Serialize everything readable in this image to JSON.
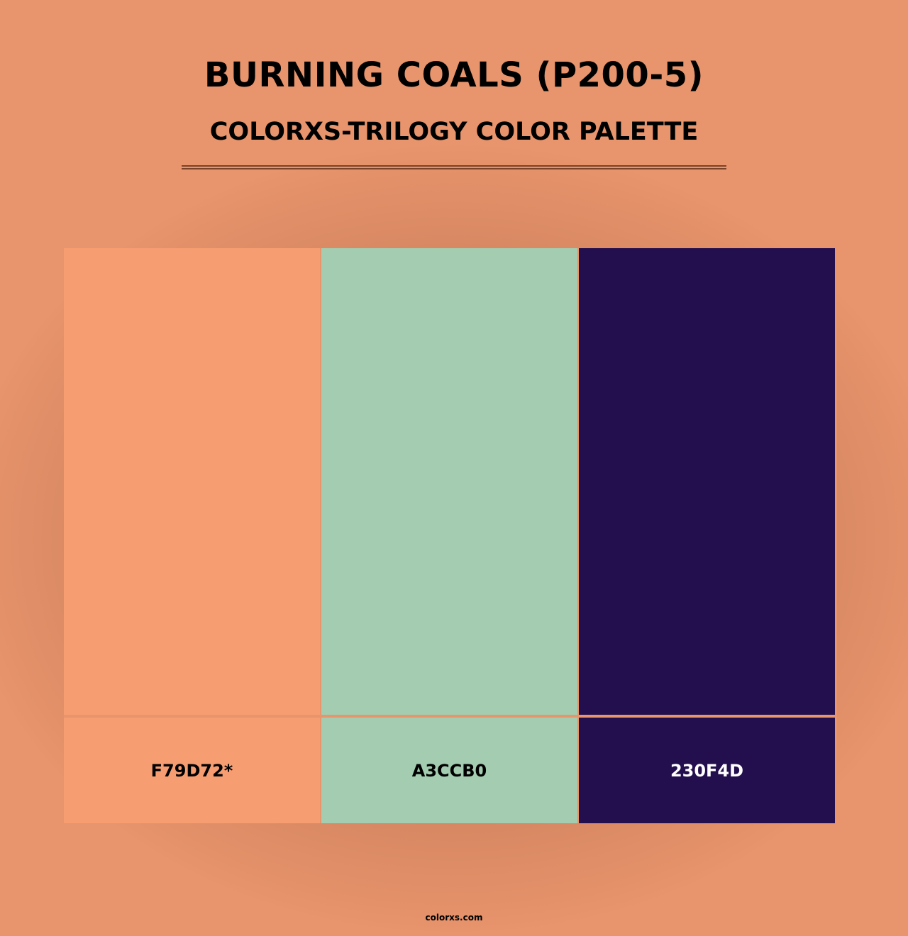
{
  "title": "BURNING COALS (P200-5)",
  "subtitle": "COLORXS-TRILOGY COLOR PALETTE",
  "colors": [
    {
      "label": "F79D72*",
      "hex": "#f79d72",
      "text_color": "#000000"
    },
    {
      "label": "A3CCB0",
      "hex": "#a3ccb0",
      "text_color": "#000000"
    },
    {
      "label": "230F4D",
      "hex": "#230f4d",
      "text_color": "#ffffff"
    }
  ],
  "footer": "colorxs.com"
}
